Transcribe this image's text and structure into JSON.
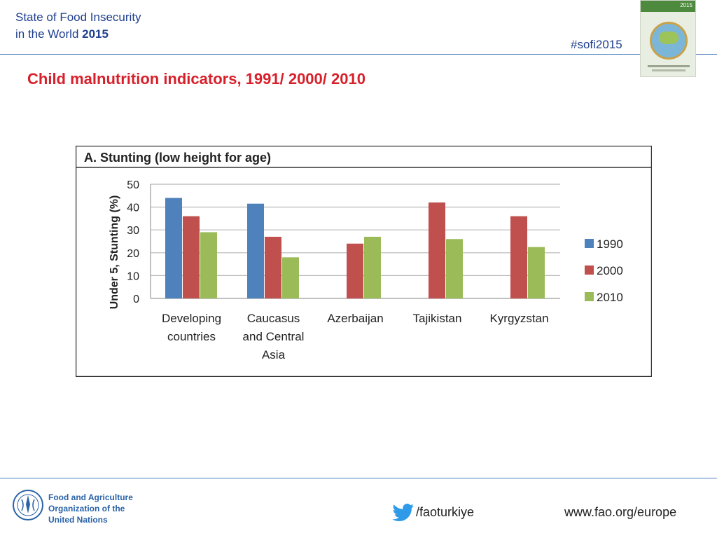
{
  "header": {
    "title_line1": "State of Food Insecurity",
    "title_line2": "in the World",
    "title_year": "2015",
    "hashtag": "#sofi2015",
    "cover_year": "2015"
  },
  "slide_title": "Child malnutrition indicators, 1991/ 2000/ 2010",
  "chart_data": {
    "type": "bar",
    "title": "A. Stunting (low height for age)",
    "xlabel": "",
    "ylabel": "Under 5, Stunting (%)",
    "ylim": [
      0,
      50
    ],
    "yticks": [
      0,
      10,
      20,
      30,
      40,
      50
    ],
    "grid": true,
    "legend_position": "right",
    "categories": [
      [
        "Developing",
        "countries"
      ],
      [
        "Caucasus",
        "and Central",
        "Asia"
      ],
      [
        "Azerbaijan"
      ],
      [
        "Tajikistan"
      ],
      [
        "Kyrgyzstan"
      ]
    ],
    "series": [
      {
        "name": "1990",
        "color": "#4f81bd",
        "values": [
          44,
          41.5,
          null,
          null,
          null
        ]
      },
      {
        "name": "2000",
        "color": "#c0504d",
        "values": [
          36,
          27,
          24,
          42,
          36
        ]
      },
      {
        "name": "2010",
        "color": "#9bbb59",
        "values": [
          29,
          18,
          27,
          26,
          22.5
        ]
      }
    ]
  },
  "footer": {
    "org_line1": "Food and Agriculture",
    "org_line2": "Organization of the",
    "org_line3": "United Nations",
    "twitter_handle": "/faoturkiye",
    "website": "www.fao.org/europe"
  }
}
